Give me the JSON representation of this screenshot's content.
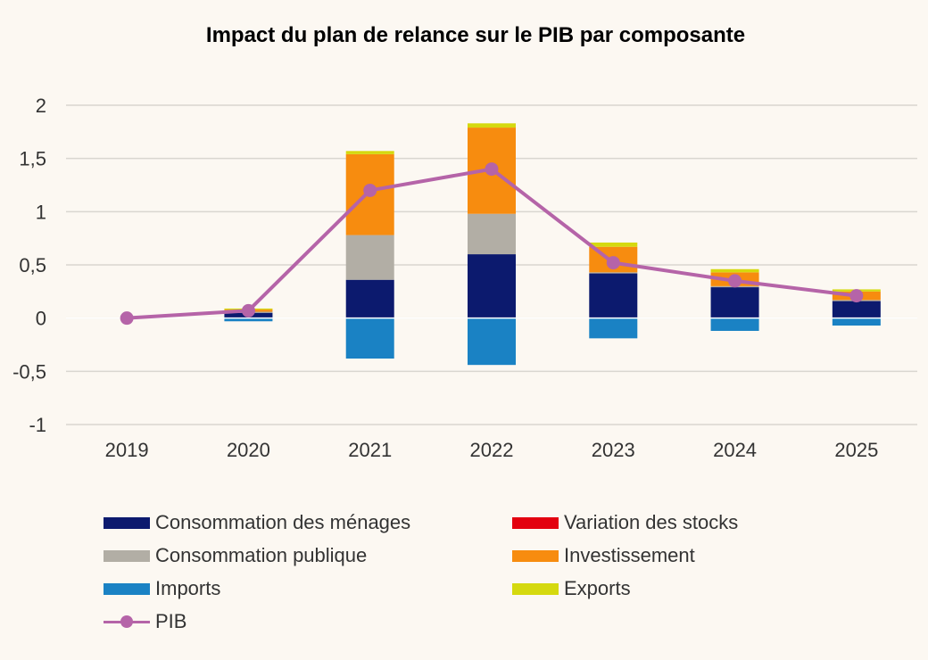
{
  "chart_data": {
    "type": "bar",
    "title": "Impact du plan de relance sur le PIB par composante",
    "categories": [
      "2019",
      "2020",
      "2021",
      "2022",
      "2023",
      "2024",
      "2025"
    ],
    "y_ticks": [
      "2",
      "1,5",
      "1",
      "0,5",
      "0",
      "-0,5",
      "-1"
    ],
    "ylim": [
      -1,
      2
    ],
    "xlabel": "",
    "ylabel": "",
    "series": [
      {
        "name": "Consommation des ménages",
        "color": "#0c1a6e",
        "values": [
          0,
          0.05,
          0.36,
          0.6,
          0.42,
          0.29,
          0.16
        ]
      },
      {
        "name": "Variation des stocks",
        "color": "#e3000f",
        "values": [
          0,
          0,
          0,
          0,
          0,
          0,
          0
        ]
      },
      {
        "name": "Consommation publique",
        "color": "#b2aea5",
        "values": [
          0,
          0.01,
          0.42,
          0.38,
          0.01,
          0.01,
          0.01
        ]
      },
      {
        "name": "Investissement",
        "color": "#f78c0f",
        "values": [
          0,
          0.02,
          0.76,
          0.81,
          0.24,
          0.13,
          0.08
        ]
      },
      {
        "name": "Imports",
        "color": "#1a82c4",
        "values": [
          0,
          -0.03,
          -0.38,
          -0.44,
          -0.19,
          -0.12,
          -0.07
        ]
      },
      {
        "name": "Exports",
        "color": "#d5d90f",
        "values": [
          0,
          0.01,
          0.03,
          0.04,
          0.04,
          0.03,
          0.02
        ]
      }
    ],
    "line": {
      "name": "PIB",
      "color": "#b564a8",
      "values": [
        0,
        0.07,
        1.2,
        1.4,
        0.52,
        0.35,
        0.21
      ]
    }
  },
  "legend": {
    "items": [
      {
        "label": "Consommation des ménages",
        "color": "#0c1a6e",
        "kind": "bar"
      },
      {
        "label": "Variation des stocks",
        "color": "#e3000f",
        "kind": "bar"
      },
      {
        "label": "Consommation publique",
        "color": "#b2aea5",
        "kind": "bar"
      },
      {
        "label": "Investissement",
        "color": "#f78c0f",
        "kind": "bar"
      },
      {
        "label": "Imports",
        "color": "#1a82c4",
        "kind": "bar"
      },
      {
        "label": "Exports",
        "color": "#d5d90f",
        "kind": "bar"
      },
      {
        "label": "PIB",
        "color": "#b564a8",
        "kind": "line"
      }
    ]
  }
}
